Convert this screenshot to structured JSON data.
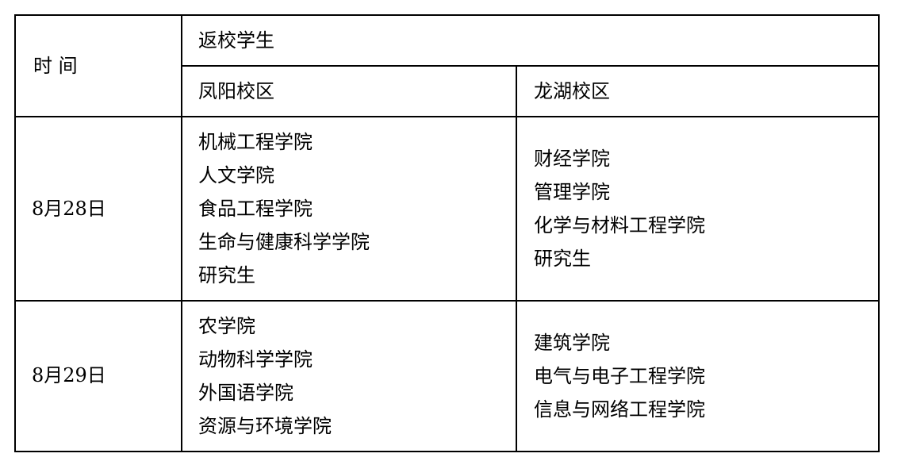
{
  "table": {
    "header": {
      "time": "时 间",
      "group": "返校学生",
      "campus_a": "凤阳校区",
      "campus_b": "龙湖校区"
    },
    "rows": [
      {
        "date": "8月28日",
        "campus_a": [
          "机械工程学院",
          "人文学院",
          "食品工程学院",
          "生命与健康科学学院",
          "研究生"
        ],
        "campus_b": [
          "财经学院",
          "管理学院",
          "化学与材料工程学院",
          "研究生"
        ]
      },
      {
        "date": "8月29日",
        "campus_a": [
          "农学院",
          "动物科学学院",
          "外国语学院",
          "资源与环境学院"
        ],
        "campus_b": [
          "建筑学院",
          "电气与电子工程学院",
          "信息与网络工程学院"
        ]
      }
    ]
  }
}
